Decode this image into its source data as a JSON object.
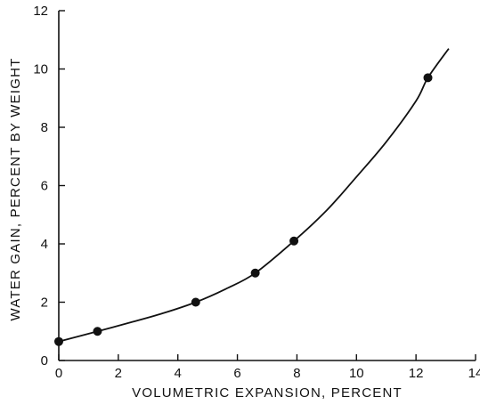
{
  "chart_data": {
    "type": "scatter",
    "xlabel": "VOLUMETRIC EXPANSION, PERCENT",
    "ylabel": "WATER GAIN, PERCENT BY WEIGHT",
    "xlim": [
      0,
      14
    ],
    "ylim": [
      0,
      12
    ],
    "x_ticks": [
      "0",
      "2",
      "4",
      "6",
      "8",
      "10",
      "12",
      "14"
    ],
    "y_ticks": [
      "0",
      "2",
      "4",
      "6",
      "8",
      "10",
      "12"
    ],
    "grid": false,
    "points": [
      {
        "x": 0.0,
        "y": 0.65
      },
      {
        "x": 1.3,
        "y": 1.0
      },
      {
        "x": 4.6,
        "y": 2.0
      },
      {
        "x": 6.6,
        "y": 3.0
      },
      {
        "x": 7.9,
        "y": 4.1
      },
      {
        "x": 12.4,
        "y": 9.7
      }
    ],
    "fitted_curve": {
      "x": [
        0.0,
        1.3,
        2.5,
        3.5,
        4.6,
        5.6,
        6.6,
        7.9,
        9.0,
        10.0,
        11.0,
        12.0,
        12.4,
        13.1
      ],
      "y": [
        0.65,
        1.0,
        1.33,
        1.62,
        2.0,
        2.45,
        3.0,
        4.1,
        5.15,
        6.3,
        7.5,
        8.9,
        9.7,
        10.7
      ]
    }
  }
}
